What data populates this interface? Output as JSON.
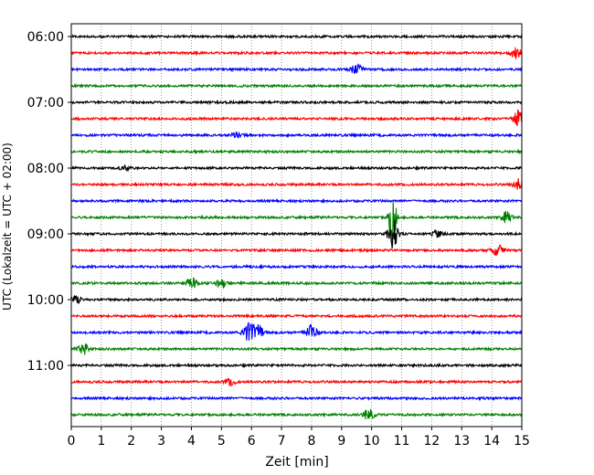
{
  "chart_data": {
    "type": "line",
    "title": "",
    "xlabel": "Zeit  [min]",
    "ylabel": "UTC (Lokalzeit = UTC + 02:00)",
    "xlim": [
      0,
      15
    ],
    "x_ticks": [
      "0",
      "1",
      "2",
      "3",
      "4",
      "5",
      "6",
      "7",
      "8",
      "9",
      "10",
      "11",
      "12",
      "13",
      "14",
      "15"
    ],
    "y_tick_labels": [
      "06:00",
      "07:00",
      "08:00",
      "09:00",
      "10:00",
      "11:00"
    ],
    "grid": "vertical dotted",
    "trace_minutes_each": 15,
    "color_cycle": [
      "#000000",
      "#ff0000",
      "#0000ff",
      "#008000"
    ],
    "traces": [
      {
        "start": "06:00",
        "color": "#000000",
        "events": []
      },
      {
        "start": "06:15",
        "color": "#ff0000",
        "events": [
          {
            "t": 14.8,
            "amp": 6
          }
        ]
      },
      {
        "start": "06:30",
        "color": "#0000ff",
        "events": [
          {
            "t": 9.5,
            "amp": 7
          }
        ]
      },
      {
        "start": "06:45",
        "color": "#008000",
        "events": []
      },
      {
        "start": "07:00",
        "color": "#000000",
        "events": []
      },
      {
        "start": "07:15",
        "color": "#ff0000",
        "events": [
          {
            "t": 14.9,
            "amp": 9
          }
        ]
      },
      {
        "start": "07:30",
        "color": "#0000ff",
        "events": [
          {
            "t": 5.5,
            "amp": 3
          }
        ]
      },
      {
        "start": "07:45",
        "color": "#008000",
        "events": []
      },
      {
        "start": "08:00",
        "color": "#000000",
        "events": [
          {
            "t": 1.8,
            "amp": 3
          }
        ]
      },
      {
        "start": "08:15",
        "color": "#ff0000",
        "events": [
          {
            "t": 14.9,
            "amp": 6
          }
        ]
      },
      {
        "start": "08:30",
        "color": "#0000ff",
        "events": []
      },
      {
        "start": "08:45",
        "color": "#008000",
        "events": [
          {
            "t": 10.7,
            "amp": 34
          },
          {
            "t": 14.5,
            "amp": 6
          }
        ]
      },
      {
        "start": "09:00",
        "color": "#000000",
        "events": [
          {
            "t": 10.7,
            "amp": 16
          },
          {
            "t": 12.2,
            "amp": 4
          }
        ]
      },
      {
        "start": "09:15",
        "color": "#ff0000",
        "events": [
          {
            "t": 14.2,
            "amp": 6
          }
        ]
      },
      {
        "start": "09:30",
        "color": "#0000ff",
        "events": []
      },
      {
        "start": "09:45",
        "color": "#008000",
        "events": [
          {
            "t": 4.0,
            "amp": 6
          },
          {
            "t": 5.0,
            "amp": 6
          }
        ]
      },
      {
        "start": "10:00",
        "color": "#000000",
        "events": [
          {
            "t": 0.2,
            "amp": 4
          }
        ]
      },
      {
        "start": "10:15",
        "color": "#ff0000",
        "events": []
      },
      {
        "start": "10:30",
        "color": "#0000ff",
        "events": [
          {
            "t": 5.9,
            "amp": 10
          },
          {
            "t": 6.2,
            "amp": 9
          },
          {
            "t": 8.0,
            "amp": 8
          }
        ]
      },
      {
        "start": "10:45",
        "color": "#008000",
        "events": [
          {
            "t": 0.4,
            "amp": 6
          }
        ]
      },
      {
        "start": "11:00",
        "color": "#000000",
        "events": []
      },
      {
        "start": "11:15",
        "color": "#ff0000",
        "events": [
          {
            "t": 5.3,
            "amp": 3
          }
        ]
      },
      {
        "start": "11:30",
        "color": "#0000ff",
        "events": []
      },
      {
        "start": "11:45",
        "color": "#008000",
        "events": [
          {
            "t": 9.9,
            "amp": 6
          }
        ]
      }
    ]
  }
}
